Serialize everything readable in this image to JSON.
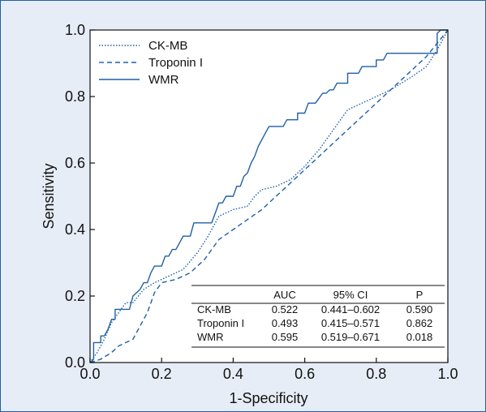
{
  "chart_data": {
    "type": "line",
    "xlabel": "1-Specificity",
    "ylabel": "Sensitivity",
    "xlim": [
      0,
      1
    ],
    "ylim": [
      0,
      1
    ],
    "xticks": [
      "0.0",
      "0.2",
      "0.4",
      "0.6",
      "0.8",
      "1.0"
    ],
    "yticks": [
      "0.0",
      "0.2",
      "0.4",
      "0.6",
      "0.8",
      "1.0"
    ],
    "grid": false,
    "legend_position": "top-left",
    "line_color": "#1f5fa6",
    "series": [
      {
        "name": "CK-MB",
        "style": "dotted",
        "points": [
          [
            0,
            0
          ],
          [
            0.02,
            0.03
          ],
          [
            0.04,
            0.07
          ],
          [
            0.06,
            0.12
          ],
          [
            0.08,
            0.15
          ],
          [
            0.1,
            0.18
          ],
          [
            0.12,
            0.18
          ],
          [
            0.15,
            0.22
          ],
          [
            0.18,
            0.24
          ],
          [
            0.22,
            0.26
          ],
          [
            0.26,
            0.28
          ],
          [
            0.3,
            0.33
          ],
          [
            0.33,
            0.38
          ],
          [
            0.36,
            0.44
          ],
          [
            0.4,
            0.46
          ],
          [
            0.44,
            0.47
          ],
          [
            0.46,
            0.5
          ],
          [
            0.48,
            0.52
          ],
          [
            0.52,
            0.53
          ],
          [
            0.56,
            0.55
          ],
          [
            0.6,
            0.59
          ],
          [
            0.64,
            0.64
          ],
          [
            0.68,
            0.7
          ],
          [
            0.72,
            0.76
          ],
          [
            0.78,
            0.79
          ],
          [
            0.84,
            0.82
          ],
          [
            0.9,
            0.86
          ],
          [
            0.94,
            0.89
          ],
          [
            0.97,
            0.94
          ],
          [
            1.0,
            1.0
          ]
        ]
      },
      {
        "name": "Troponin I",
        "style": "dashed",
        "points": [
          [
            0,
            0
          ],
          [
            0.03,
            0.01
          ],
          [
            0.06,
            0.03
          ],
          [
            0.08,
            0.05
          ],
          [
            0.12,
            0.07
          ],
          [
            0.14,
            0.11
          ],
          [
            0.16,
            0.15
          ],
          [
            0.18,
            0.21
          ],
          [
            0.2,
            0.24
          ],
          [
            0.24,
            0.25
          ],
          [
            0.28,
            0.27
          ],
          [
            0.32,
            0.31
          ],
          [
            0.36,
            0.37
          ],
          [
            0.4,
            0.4
          ],
          [
            0.44,
            0.43
          ],
          [
            0.48,
            0.46
          ],
          [
            0.52,
            0.5
          ],
          [
            0.56,
            0.54
          ],
          [
            0.6,
            0.58
          ],
          [
            0.64,
            0.62
          ],
          [
            0.7,
            0.68
          ],
          [
            0.76,
            0.74
          ],
          [
            0.82,
            0.8
          ],
          [
            0.88,
            0.86
          ],
          [
            0.94,
            0.92
          ],
          [
            1.0,
            1.0
          ]
        ]
      },
      {
        "name": "WMR",
        "style": "solid",
        "points": [
          [
            0,
            0
          ],
          [
            0.01,
            0.01
          ],
          [
            0.01,
            0.06
          ],
          [
            0.02,
            0.06
          ],
          [
            0.03,
            0.06
          ],
          [
            0.03,
            0.08
          ],
          [
            0.04,
            0.08
          ],
          [
            0.05,
            0.1
          ],
          [
            0.06,
            0.13
          ],
          [
            0.07,
            0.13
          ],
          [
            0.07,
            0.16
          ],
          [
            0.08,
            0.16
          ],
          [
            0.11,
            0.16
          ],
          [
            0.12,
            0.2
          ],
          [
            0.14,
            0.22
          ],
          [
            0.15,
            0.24
          ],
          [
            0.16,
            0.24
          ],
          [
            0.17,
            0.27
          ],
          [
            0.18,
            0.29
          ],
          [
            0.2,
            0.29
          ],
          [
            0.21,
            0.32
          ],
          [
            0.22,
            0.32
          ],
          [
            0.23,
            0.34
          ],
          [
            0.24,
            0.34
          ],
          [
            0.25,
            0.36
          ],
          [
            0.26,
            0.38
          ],
          [
            0.28,
            0.38
          ],
          [
            0.29,
            0.42
          ],
          [
            0.34,
            0.42
          ],
          [
            0.35,
            0.45
          ],
          [
            0.36,
            0.48
          ],
          [
            0.37,
            0.48
          ],
          [
            0.38,
            0.5
          ],
          [
            0.4,
            0.5
          ],
          [
            0.41,
            0.53
          ],
          [
            0.42,
            0.53
          ],
          [
            0.43,
            0.56
          ],
          [
            0.44,
            0.57
          ],
          [
            0.45,
            0.6
          ],
          [
            0.46,
            0.62
          ],
          [
            0.47,
            0.65
          ],
          [
            0.48,
            0.67
          ],
          [
            0.49,
            0.69
          ],
          [
            0.5,
            0.71
          ],
          [
            0.54,
            0.71
          ],
          [
            0.55,
            0.73
          ],
          [
            0.58,
            0.73
          ],
          [
            0.58,
            0.75
          ],
          [
            0.6,
            0.75
          ],
          [
            0.61,
            0.78
          ],
          [
            0.63,
            0.78
          ],
          [
            0.65,
            0.81
          ],
          [
            0.66,
            0.81
          ],
          [
            0.67,
            0.82
          ],
          [
            0.68,
            0.82
          ],
          [
            0.69,
            0.84
          ],
          [
            0.72,
            0.84
          ],
          [
            0.72,
            0.87
          ],
          [
            0.75,
            0.87
          ],
          [
            0.76,
            0.89
          ],
          [
            0.77,
            0.89
          ],
          [
            0.8,
            0.89
          ],
          [
            0.8,
            0.91
          ],
          [
            0.82,
            0.91
          ],
          [
            0.83,
            0.93
          ],
          [
            0.97,
            0.93
          ],
          [
            0.97,
            0.99
          ],
          [
            0.98,
            1.0
          ],
          [
            1.0,
            1.0
          ]
        ]
      }
    ],
    "table": {
      "headers": [
        "",
        "AUC",
        "95% CI",
        "P"
      ],
      "rows": [
        [
          "CK-MB",
          "0.522",
          "0.441–0.602",
          "0.590"
        ],
        [
          "Troponin I",
          "0.493",
          "0.415–0.571",
          "0.862"
        ],
        [
          "WMR",
          "0.595",
          "0.519–0.671",
          "0.018"
        ]
      ]
    }
  }
}
